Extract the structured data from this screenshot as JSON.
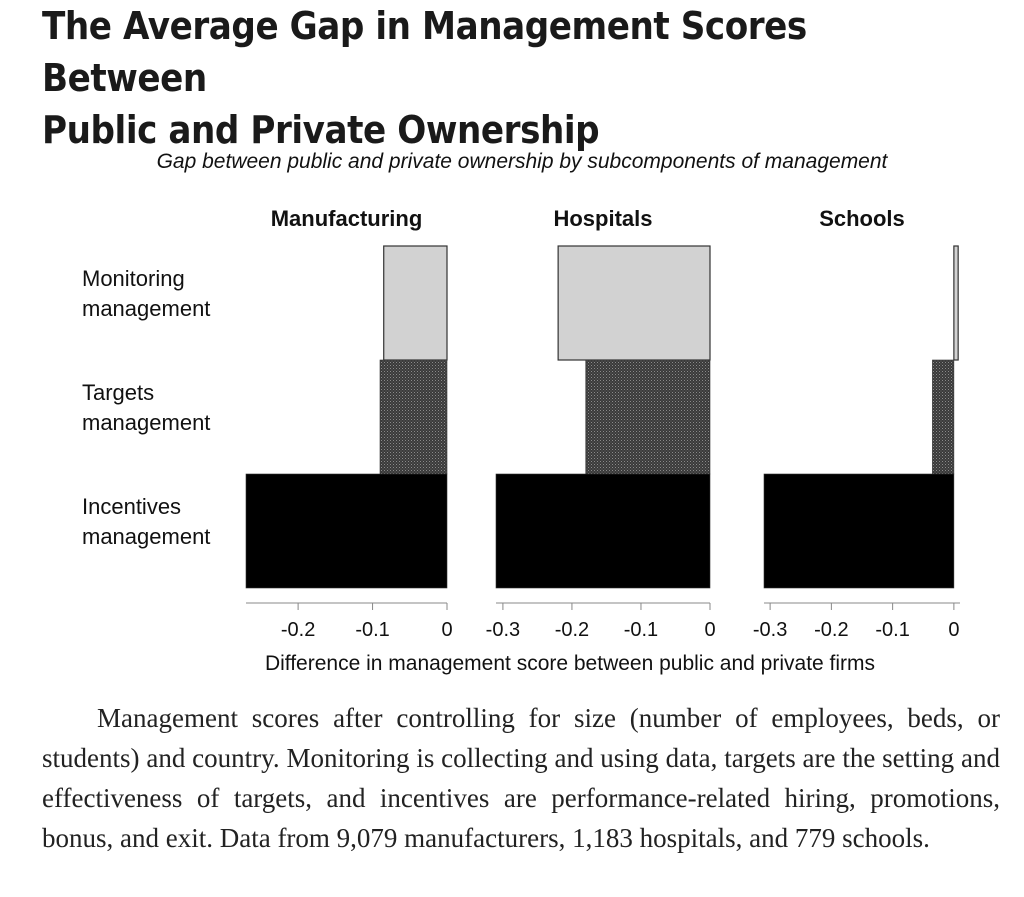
{
  "title": {
    "line1": "The Average Gap in Management Scores Between",
    "line2": "Public and Private Ownership"
  },
  "chart_data": {
    "type": "bar",
    "orientation": "horizontal",
    "subtitle": "Gap between public and private ownership by subcomponents of management",
    "xlabel": "Difference in management score between public and private firms",
    "categories": [
      "Monitoring management",
      "Targets management",
      "Incentives management"
    ],
    "category_lines": [
      [
        "Monitoring",
        "management"
      ],
      [
        "Targets",
        "management"
      ],
      [
        "Incentives",
        "management"
      ]
    ],
    "fills": [
      "#d2d2d2",
      "#4a4a4a",
      "#000000"
    ],
    "panels": [
      {
        "name": "Manufacturing",
        "values": [
          -0.085,
          -0.09,
          -0.27
        ],
        "xlim": [
          -0.27,
          0
        ],
        "ticks": [
          -0.2,
          -0.1,
          0
        ],
        "tick_labels": [
          "-0.2",
          "-0.1",
          "0"
        ]
      },
      {
        "name": "Hospitals",
        "values": [
          -0.22,
          -0.18,
          -0.31
        ],
        "xlim": [
          -0.31,
          0
        ],
        "ticks": [
          -0.3,
          -0.2,
          -0.1,
          0
        ],
        "tick_labels": [
          "-0.3",
          "-0.2",
          "-0.1",
          "0"
        ]
      },
      {
        "name": "Schools",
        "values": [
          0.007,
          -0.035,
          -0.31
        ],
        "xlim": [
          -0.31,
          0.01
        ],
        "ticks": [
          -0.3,
          -0.2,
          -0.1,
          0
        ],
        "tick_labels": [
          "-0.3",
          "-0.2",
          "-0.1",
          "0"
        ]
      }
    ]
  },
  "caption": "Management scores after controlling for size (number of employees, beds, or students) and country. Monitoring is collecting and using data, targets are the setting and effectiveness of targets, and incentives are performance-related hiring, promotions, bonus, and exit. Data from 9,079 manufacturers, 1,183 hospitals, and 779 schools."
}
